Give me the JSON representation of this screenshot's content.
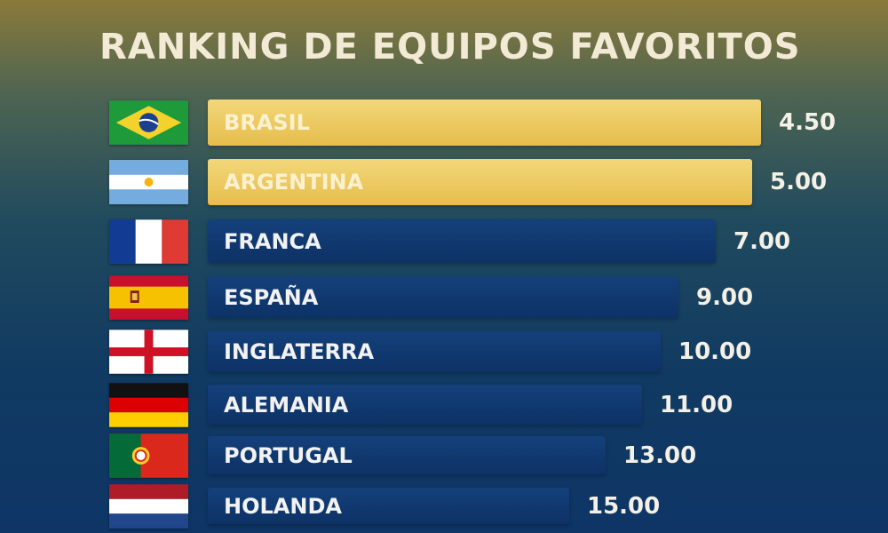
{
  "chart_data": {
    "type": "bar",
    "orientation": "horizontal",
    "title": "RANKING DE EQUIPOS FAVORITOS",
    "categories": [
      "BRASIL",
      "ARGENTINA",
      "FRANCA",
      "ESPAÑA",
      "INGLATERRA",
      "ALEMANIA",
      "PORTUGAL",
      "HOLANDA"
    ],
    "values": [
      4.5,
      5.0,
      7.0,
      9.0,
      10.0,
      11.0,
      13.0,
      15.0
    ],
    "value_labels": [
      "4.50",
      "5.00",
      "7.00",
      "9.00",
      "10.00",
      "11.00",
      "13.00",
      "15.00"
    ],
    "highlighted": [
      "BRASIL",
      "ARGENTINA"
    ],
    "flags": [
      "brazil-flag",
      "argentina-flag",
      "france-flag",
      "spain-flag",
      "england-flag",
      "germany-flag",
      "portugal-flag",
      "netherlands-flag"
    ],
    "colors": {
      "highlight": "#e9c257",
      "bar": "#0f3670",
      "text": "#f3ead6"
    }
  }
}
